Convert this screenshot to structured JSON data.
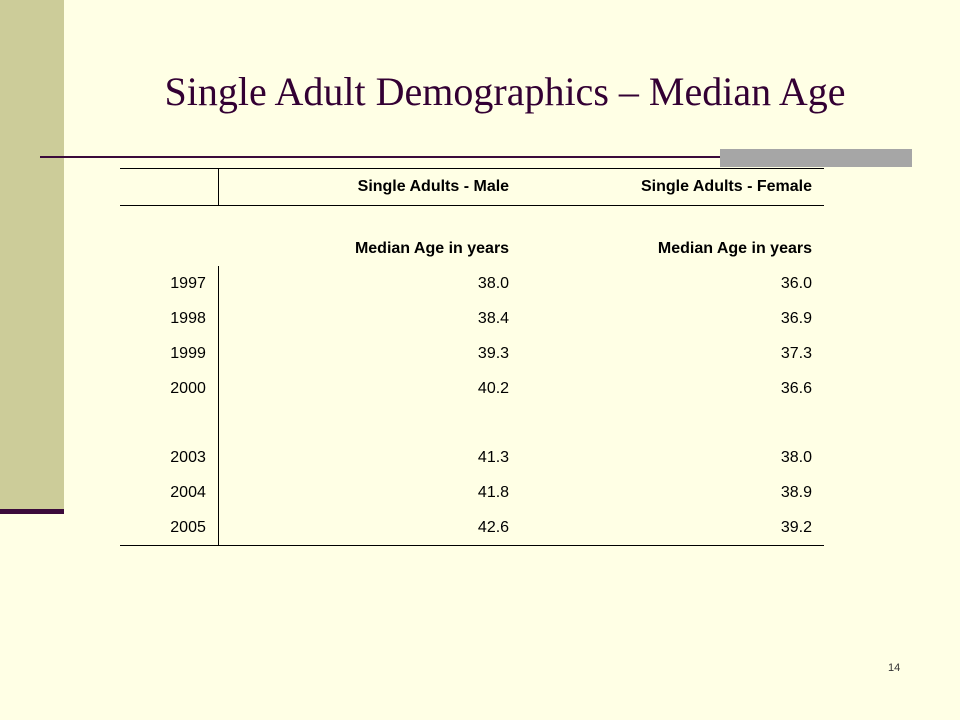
{
  "slide": {
    "title": "Single Adult Demographics – Median Age",
    "page_number": "14"
  },
  "table": {
    "headers": [
      "",
      "Single Adults - Male",
      "Single Adults - Female"
    ],
    "subheaders": [
      "",
      "Median Age in years",
      "Median Age in years"
    ],
    "rows": [
      {
        "year": "1997",
        "male": "38.0",
        "female": "36.0"
      },
      {
        "year": "1998",
        "male": "38.4",
        "female": "36.9"
      },
      {
        "year": "1999",
        "male": "39.3",
        "female": "37.3"
      },
      {
        "year": "2000",
        "male": "40.2",
        "female": "36.6"
      },
      {
        "year": "",
        "male": "",
        "female": ""
      },
      {
        "year": "2003",
        "male": "41.3",
        "female": "38.0"
      },
      {
        "year": "2004",
        "male": "41.8",
        "female": "38.9"
      },
      {
        "year": "2005",
        "male": "42.6",
        "female": "39.2"
      }
    ]
  },
  "colors": {
    "background": "#FFFFE5",
    "left_band": "#CCCC99",
    "accent": "#3B0A3B",
    "title": "#330033",
    "gray_bar": "#A6A6A6"
  }
}
